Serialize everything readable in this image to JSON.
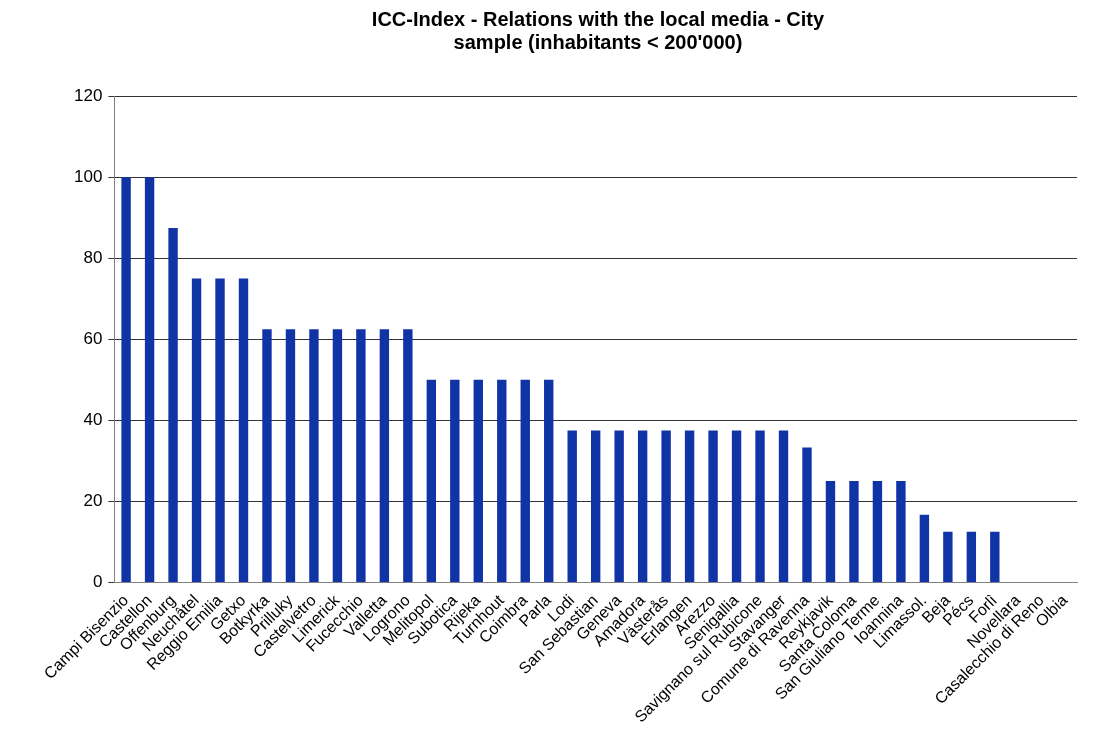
{
  "chart_data": {
    "type": "bar",
    "title": "ICC-Index - Relations with the local media - City sample (inhabitants < 200'000)",
    "categories": [
      "Campi Bisenzio",
      "Castellon",
      "Offenburg",
      "Neuchâtel",
      "Reggio Emilia",
      "Getxo",
      "Botkyrka",
      "Prilluky",
      "Castelvetro",
      "Limerick",
      "Fucecchio",
      "Valletta",
      "Logrono",
      "Melitopol",
      "Subotica",
      "Rijeka",
      "Turnhout",
      "Coimbra",
      "Parla",
      "Lodi",
      "San Sebastian",
      "Geneva",
      "Amadora",
      "Västerås",
      "Erlangen",
      "Arezzo",
      "Senigallia",
      "Savignano sul Rubicone",
      "Stavanger",
      "Comune di Ravenna",
      "Reykjavik",
      "Santa Coloma",
      "San Giuliano Terme",
      "Ioannina",
      "Limassol.",
      "Beja",
      "Pécs",
      "Forlì",
      "Novellara",
      "Casalecchio di Reno",
      "Olbia"
    ],
    "values": [
      100,
      100,
      87.5,
      75,
      75,
      75,
      62.5,
      62.5,
      62.5,
      62.5,
      62.5,
      62.5,
      62.5,
      50,
      50,
      50,
      50,
      50,
      50,
      37.5,
      37.5,
      37.5,
      37.5,
      37.5,
      37.5,
      37.5,
      37.5,
      37.5,
      37.5,
      33.3,
      25,
      25,
      25,
      25,
      16.7,
      12.5,
      12.5,
      12.5,
      0,
      0,
      0
    ],
    "color": "#1034a6",
    "ylim": [
      0,
      120
    ],
    "yticks": [
      0,
      20,
      40,
      60,
      80,
      100,
      120
    ],
    "grid": "y",
    "legend": false
  }
}
